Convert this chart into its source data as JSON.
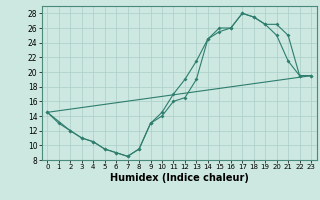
{
  "xlabel": "Humidex (Indice chaleur)",
  "line_color": "#2e7d6e",
  "bg_color": "#cce8e0",
  "grid_color": "#aacfc8",
  "xlim": [
    -0.5,
    23.5
  ],
  "ylim": [
    8,
    29
  ],
  "xticks": [
    0,
    1,
    2,
    3,
    4,
    5,
    6,
    7,
    8,
    9,
    10,
    11,
    12,
    13,
    14,
    15,
    16,
    17,
    18,
    19,
    20,
    21,
    22,
    23
  ],
  "yticks": [
    8,
    10,
    12,
    14,
    16,
    18,
    20,
    22,
    24,
    26,
    28
  ],
  "line1_x": [
    0,
    1,
    2,
    3,
    4,
    5,
    6,
    7,
    8,
    9,
    10,
    11,
    12,
    13,
    14,
    15,
    16,
    17,
    18,
    19,
    20,
    21,
    22,
    23
  ],
  "line1_y": [
    14.5,
    13,
    12,
    11,
    10.5,
    9.5,
    9,
    8.5,
    9.5,
    13,
    14,
    16,
    16.5,
    19,
    24.5,
    25.5,
    26,
    28,
    27.5,
    26.5,
    25,
    21.5,
    19.5,
    19.5
  ],
  "line2_x": [
    0,
    2,
    3,
    4,
    5,
    6,
    7,
    8,
    9,
    10,
    11,
    12,
    13,
    14,
    15,
    16,
    17,
    18,
    19,
    20,
    21,
    22,
    23
  ],
  "line2_y": [
    14.5,
    12,
    11,
    10.5,
    9.5,
    9,
    8.5,
    9.5,
    13,
    14.5,
    17,
    19,
    21.5,
    24.5,
    26,
    26,
    28,
    27.5,
    26.5,
    26.5,
    25,
    19.5,
    19.5
  ],
  "line3_x": [
    0,
    23
  ],
  "line3_y": [
    14.5,
    19.5
  ]
}
